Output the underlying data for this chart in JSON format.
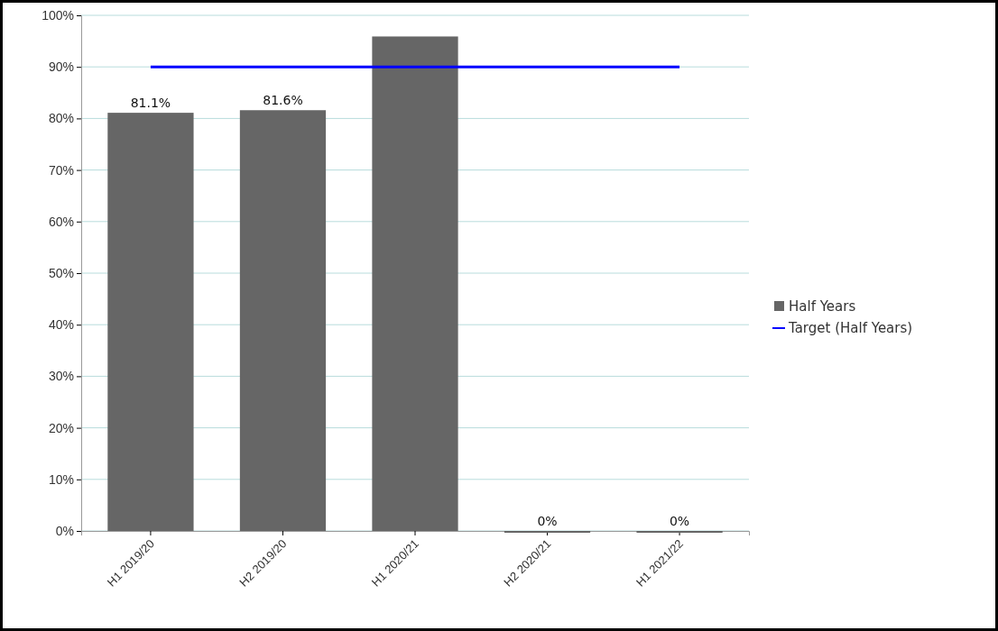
{
  "chart_data": {
    "type": "bar",
    "categories": [
      "H1 2019/20",
      "H2 2019/20",
      "H1 2020/21",
      "H2 2020/21",
      "H1 2021/22"
    ],
    "series": [
      {
        "name": "Half Years",
        "color": "#666666",
        "values": [
          81.1,
          81.6,
          95.9,
          0,
          0
        ],
        "value_labels": [
          "81.1%",
          "81.6%",
          null,
          "0%",
          "0%"
        ]
      },
      {
        "name": "Target (Half Years)",
        "type": "line",
        "color": "#0000ff",
        "values": [
          90,
          90,
          90,
          90,
          90
        ]
      }
    ],
    "ylim": [
      0,
      100
    ],
    "yticks": [
      {
        "value": 0,
        "label": "0%"
      },
      {
        "value": 10,
        "label": "10%"
      },
      {
        "value": 20,
        "label": "20%"
      },
      {
        "value": 30,
        "label": "30%"
      },
      {
        "value": 40,
        "label": "40%"
      },
      {
        "value": 50,
        "label": "50%"
      },
      {
        "value": 60,
        "label": "60%"
      },
      {
        "value": 70,
        "label": "70%"
      },
      {
        "value": 80,
        "label": "80%"
      },
      {
        "value": 90,
        "label": "90%"
      },
      {
        "value": 100,
        "label": "100%"
      }
    ],
    "grid": "y",
    "legend": "right",
    "marker": "none"
  }
}
